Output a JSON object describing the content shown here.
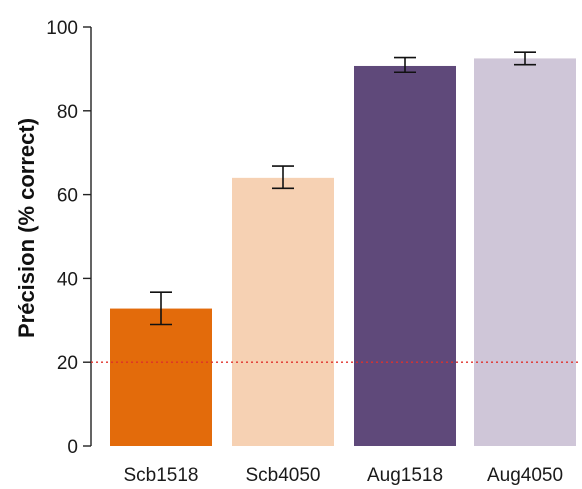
{
  "chart_data": {
    "type": "bar",
    "title": "",
    "xlabel": "",
    "ylabel": "Précision (% correct)",
    "ylim": [
      0,
      100
    ],
    "yticks": [
      0,
      20,
      40,
      60,
      80,
      100
    ],
    "categories": [
      "Scb1518",
      "Scb4050",
      "Aug1518",
      "Aug4050"
    ],
    "values": [
      32.8,
      64.0,
      90.7,
      92.5
    ],
    "error_low": [
      29.0,
      61.5,
      89.2,
      91.0
    ],
    "error_high": [
      36.7,
      66.8,
      92.7,
      94.0
    ],
    "colors": [
      "#e36b0b",
      "#f6d1b3",
      "#5f497a",
      "#cfc6d8"
    ],
    "reference_line": {
      "y": 20,
      "color": "#e0302a",
      "style": "dotted"
    },
    "grid": false,
    "legend": "none"
  }
}
